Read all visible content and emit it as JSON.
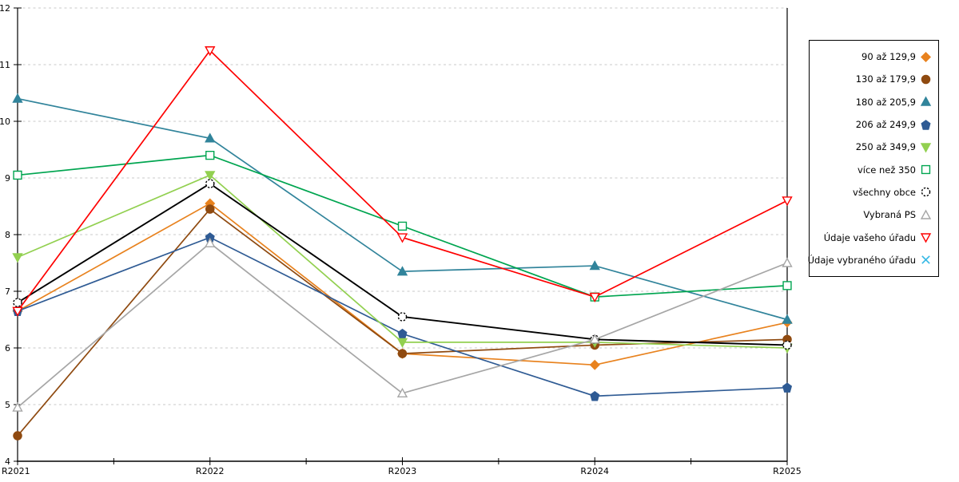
{
  "chart_data": {
    "type": "line",
    "title": "",
    "xlabel": "",
    "ylabel": "",
    "categories": [
      "R2021",
      "R2022",
      "R2023",
      "R2024",
      "R2025"
    ],
    "yticks": [
      4,
      5,
      6,
      7,
      8,
      9,
      10,
      11,
      12
    ],
    "ylim": [
      4,
      12
    ],
    "grid": "horizontal-dashed",
    "gridline_color": "#c9c9c9",
    "axis_color": "#000000",
    "legend_position": "right",
    "series": [
      {
        "name": "90 až 129,9",
        "color": "#E8821E",
        "marker": "diamond",
        "fill": "filled",
        "values": [
          6.65,
          8.55,
          5.9,
          5.7,
          6.45
        ]
      },
      {
        "name": "130 až 179,9",
        "color": "#8F4A10",
        "marker": "circle",
        "fill": "filled",
        "values": [
          4.45,
          8.45,
          5.9,
          6.05,
          6.15
        ]
      },
      {
        "name": "180 až 205,9",
        "color": "#31849B",
        "marker": "triangle-up",
        "fill": "filled",
        "values": [
          10.4,
          9.7,
          7.35,
          7.45,
          6.5
        ]
      },
      {
        "name": "206 až 249,9",
        "color": "#2F5B94",
        "marker": "pentagon",
        "fill": "filled",
        "values": [
          6.65,
          7.95,
          6.25,
          5.15,
          5.3
        ]
      },
      {
        "name": "250 až 349,9",
        "color": "#92D050",
        "marker": "triangle-down",
        "fill": "filled",
        "values": [
          7.6,
          9.05,
          6.1,
          6.1,
          6.0
        ]
      },
      {
        "name": "více než 350",
        "color": "#00A550",
        "marker": "square",
        "fill": "open",
        "values": [
          9.05,
          9.4,
          8.15,
          6.9,
          7.1
        ]
      },
      {
        "name": "všechny obce",
        "color": "#000000",
        "marker": "circle-dashed",
        "fill": "open",
        "values": [
          6.8,
          8.9,
          6.55,
          6.15,
          6.05
        ]
      },
      {
        "name": "Vybraná PS",
        "color": "#A6A6A6",
        "marker": "triangle-up",
        "fill": "open",
        "values": [
          4.95,
          7.85,
          5.2,
          6.15,
          7.5
        ]
      },
      {
        "name": "Údaje vašeho úřadu",
        "color": "#FE0000",
        "marker": "triangle-down",
        "fill": "open",
        "values": [
          6.65,
          11.25,
          7.95,
          6.9,
          8.6
        ]
      },
      {
        "name": "Údaje vybraného úřadu",
        "color": "#36B9E5",
        "marker": "x",
        "fill": "open",
        "values": [
          null,
          null,
          null,
          null,
          null
        ]
      }
    ]
  }
}
